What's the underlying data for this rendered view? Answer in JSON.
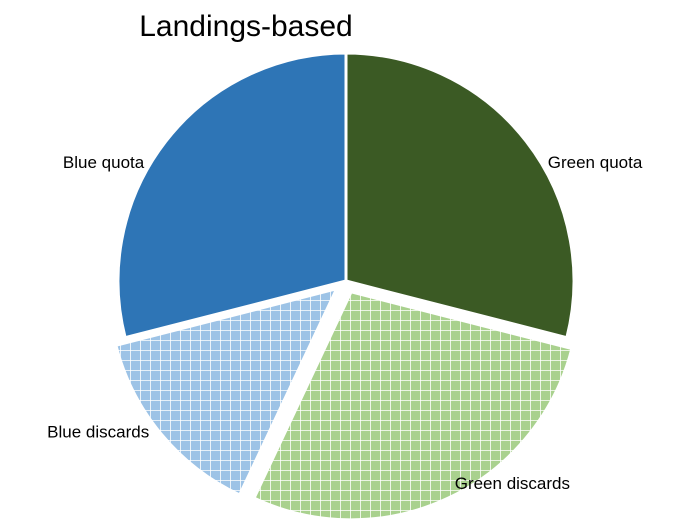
{
  "chart_data": {
    "type": "pie",
    "title": "Landings-based",
    "categories": [
      "Green quota",
      "Green discards",
      "Blue discards",
      "Blue quota"
    ],
    "values": [
      29,
      28,
      14,
      29
    ],
    "colors": [
      "#3b5a24",
      "#a9d18e",
      "#9dc3e6",
      "#2e75b6"
    ],
    "hatched": [
      false,
      true,
      true,
      false
    ],
    "exploded": [
      false,
      true,
      true,
      false
    ]
  }
}
